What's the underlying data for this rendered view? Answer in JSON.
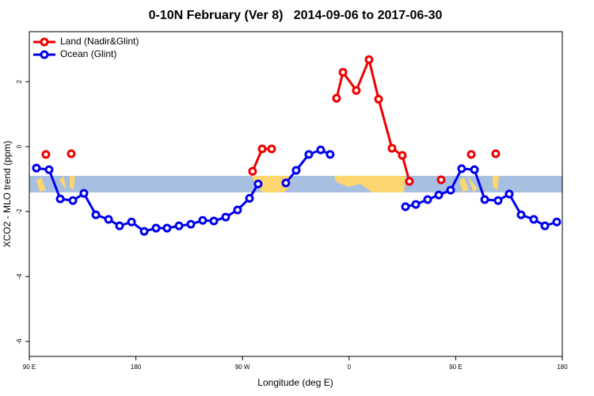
{
  "chart_data": {
    "type": "line",
    "title": "0-10N February (Ver 8)   2014-09-06 to 2017-06-30",
    "x_label": "Longitude (deg E)",
    "y_label": "XCO2 - MLO trend (ppm)",
    "xlim": [
      90,
      540
    ],
    "ylim": [
      -6.46,
      3.54
    ],
    "xticks": [
      {
        "value": 90,
        "label": "90 E"
      },
      180,
      {
        "value": 270,
        "label": "90 W"
      },
      {
        "value": 360,
        "label": "0"
      },
      {
        "value": 450,
        "label": "90 E"
      },
      {
        "value": 540,
        "label": "180"
      }
    ],
    "yticks": [
      -6,
      -4,
      -2,
      0,
      2
    ],
    "legend": "top-left",
    "series": [
      {
        "name": "Land (Nadir&Glint)",
        "color": "#ee0000",
        "x": [
          104,
          null,
          125.4,
          null,
          278.5,
          286.6,
          294.6,
          null,
          349.4,
          354.8,
          366.1,
          376.8,
          384.9,
          396.2,
          404.9,
          410.9,
          null,
          437.7,
          null,
          463.1,
          null,
          483.8
        ],
        "values": [
          -0.24,
          null,
          -0.22,
          null,
          -0.76,
          -0.07,
          -0.07,
          null,
          1.49,
          2.29,
          1.73,
          2.68,
          1.46,
          -0.05,
          -0.27,
          -1.07,
          null,
          -1.02,
          null,
          -0.24,
          null,
          -0.22
        ]
      },
      {
        "name": "Ocean (Glint)",
        "color": "#0000ee",
        "x": [
          96,
          106.7,
          116.1,
          126.8,
          136.1,
          146.2,
          156.9,
          166.2,
          176.3,
          187,
          197,
          206.3,
          216.4,
          226.4,
          236.4,
          245.8,
          255.8,
          265.8,
          275.9,
          283.2,
          null,
          306.6,
          315.3,
          326,
          336,
          344,
          null,
          407.6,
          416.3,
          426.3,
          435.7,
          445.7,
          455,
          465.8,
          474.5,
          485.8,
          495.2,
          505.2,
          515.9,
          525.3,
          535.3
        ],
        "values": [
          -0.66,
          -0.71,
          -1.61,
          -1.66,
          -1.44,
          -2.1,
          -2.24,
          -2.44,
          -2.32,
          -2.61,
          -2.51,
          -2.51,
          -2.44,
          -2.39,
          -2.27,
          -2.29,
          -2.17,
          -1.95,
          -1.59,
          -1.15,
          null,
          -1.12,
          -0.73,
          -0.24,
          -0.1,
          -0.24,
          null,
          -1.85,
          -1.78,
          -1.63,
          -1.49,
          -1.34,
          -0.68,
          -0.71,
          -1.63,
          -1.66,
          -1.46,
          -2.1,
          -2.24,
          -2.44,
          -2.32
        ]
      }
    ]
  }
}
